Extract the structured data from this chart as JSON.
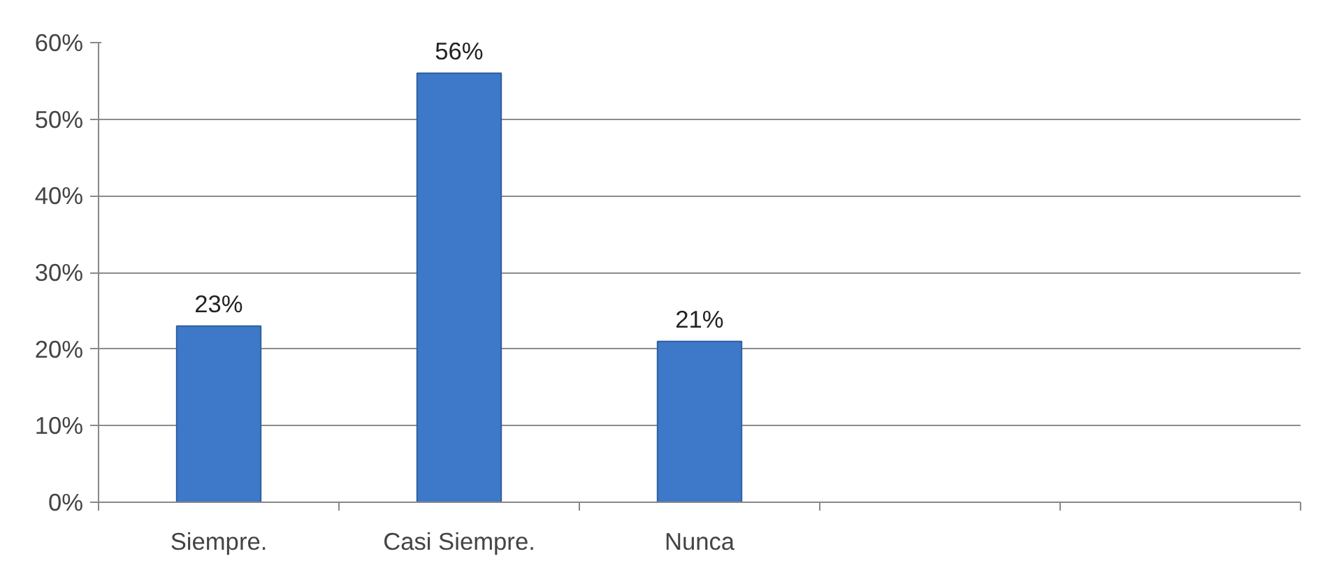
{
  "chart_data": {
    "type": "bar",
    "categories": [
      "Siempre.",
      "Casi Siempre.",
      "Nunca",
      null,
      null
    ],
    "values": [
      23,
      56,
      21,
      null,
      null
    ],
    "value_labels": [
      "23%",
      "56%",
      "21%",
      null,
      null
    ],
    "color": "#3d78c9",
    "ylim": [
      0,
      60
    ],
    "yticks": [
      {
        "value": 0,
        "label": "0%"
      },
      {
        "value": 10,
        "label": "10%"
      },
      {
        "value": 20,
        "label": "20%"
      },
      {
        "value": 30,
        "label": "30%"
      },
      {
        "value": 40,
        "label": "40%"
      },
      {
        "value": 50,
        "label": "50%"
      },
      {
        "value": 60,
        "label": "60%"
      }
    ],
    "grid": "y"
  }
}
